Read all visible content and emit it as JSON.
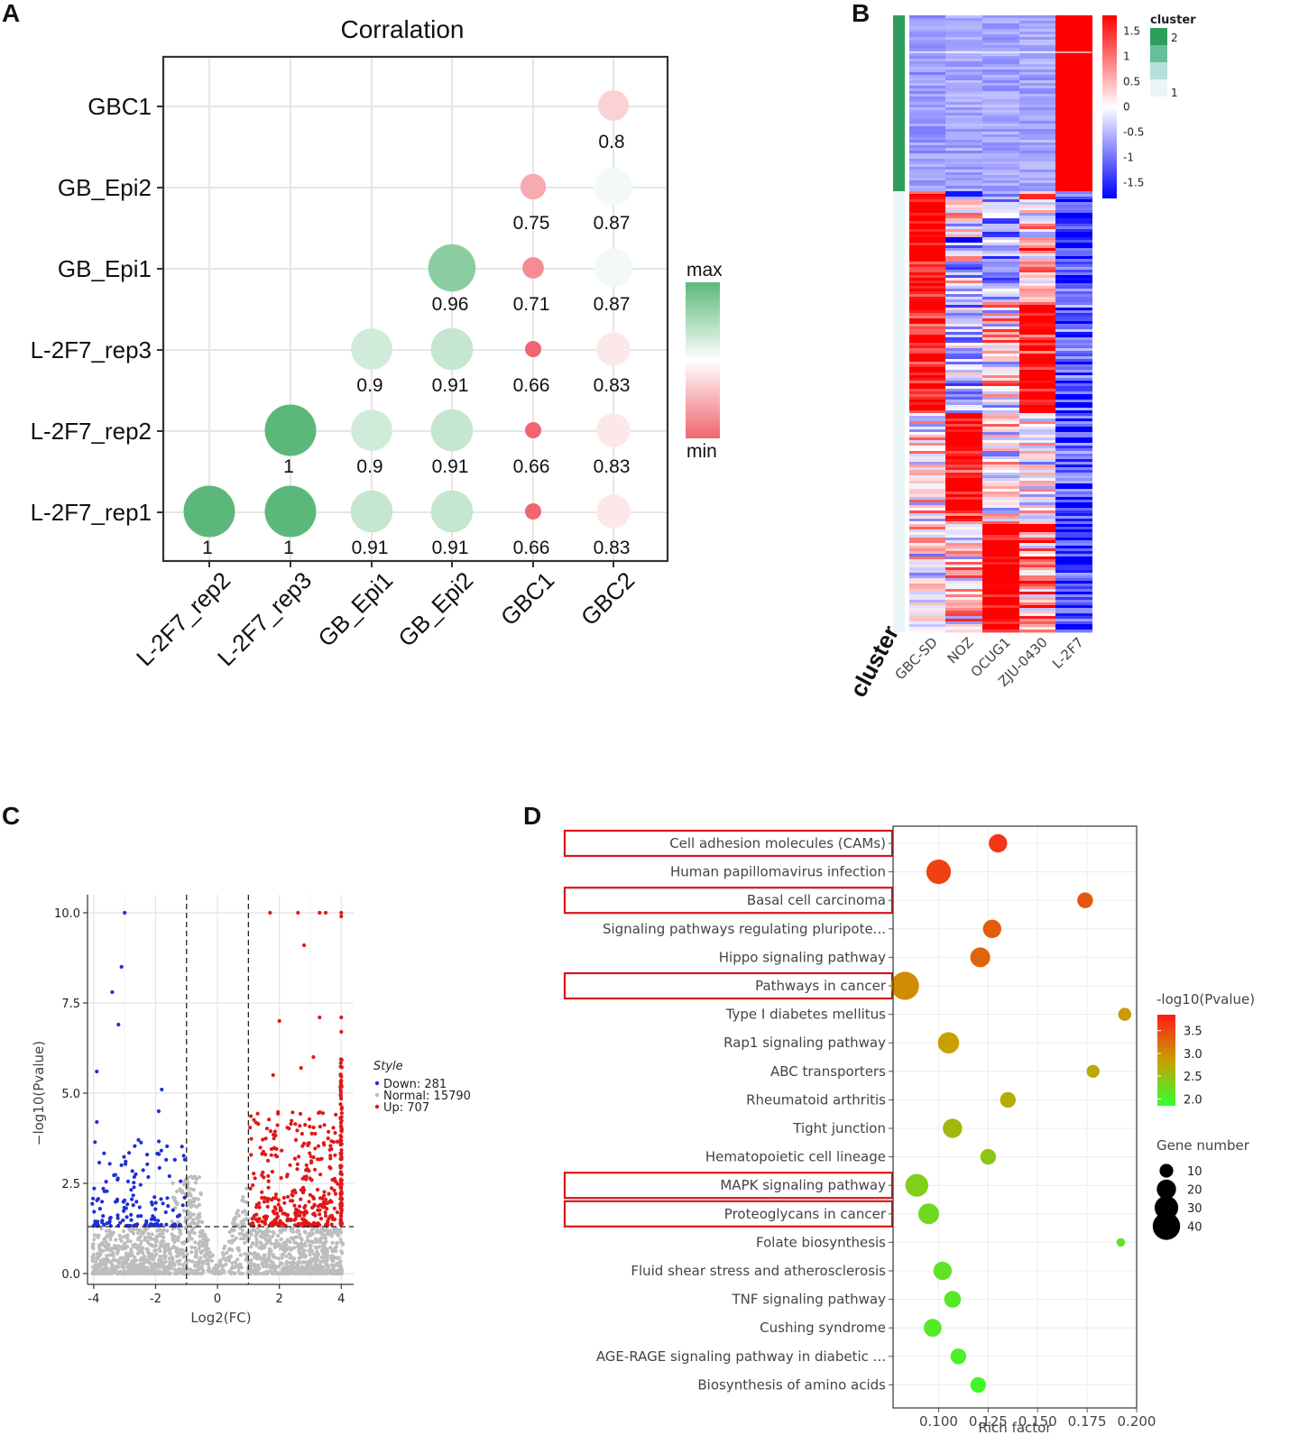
{
  "panels": {
    "a": "A",
    "b": "B",
    "c": "C",
    "d": "D"
  },
  "chart_data": [
    {
      "id": "A",
      "type": "scatter",
      "title": "Corralation",
      "x_categories": [
        "L-2F7_rep2",
        "L-2F7_rep3",
        "GB_Epi1",
        "GB_Epi2",
        "GBC1",
        "GBC2"
      ],
      "y_categories": [
        "L-2F7_rep1",
        "L-2F7_rep2",
        "L-2F7_rep3",
        "GB_Epi1",
        "GB_Epi2",
        "GBC1"
      ],
      "cells": [
        {
          "x": "GBC2",
          "y": "GBC1",
          "value": 0.8,
          "label": "0.8"
        },
        {
          "x": "GBC1",
          "y": "GB_Epi2",
          "value": 0.75,
          "label": "0.75"
        },
        {
          "x": "GBC2",
          "y": "GB_Epi2",
          "value": 0.87,
          "label": "0.87"
        },
        {
          "x": "GB_Epi2",
          "y": "GB_Epi1",
          "value": 0.96,
          "label": "0.96"
        },
        {
          "x": "GBC1",
          "y": "GB_Epi1",
          "value": 0.71,
          "label": "0.71"
        },
        {
          "x": "GBC2",
          "y": "GB_Epi1",
          "value": 0.87,
          "label": "0.87"
        },
        {
          "x": "GB_Epi1",
          "y": "L-2F7_rep3",
          "value": 0.9,
          "label": "0.9"
        },
        {
          "x": "GB_Epi2",
          "y": "L-2F7_rep3",
          "value": 0.91,
          "label": "0.91"
        },
        {
          "x": "GBC1",
          "y": "L-2F7_rep3",
          "value": 0.66,
          "label": "0.66"
        },
        {
          "x": "GBC2",
          "y": "L-2F7_rep3",
          "value": 0.83,
          "label": "0.83"
        },
        {
          "x": "L-2F7_rep3",
          "y": "L-2F7_rep2",
          "value": 1.0,
          "label": "1"
        },
        {
          "x": "GB_Epi1",
          "y": "L-2F7_rep2",
          "value": 0.9,
          "label": "0.9"
        },
        {
          "x": "GB_Epi2",
          "y": "L-2F7_rep2",
          "value": 0.91,
          "label": "0.91"
        },
        {
          "x": "GBC1",
          "y": "L-2F7_rep2",
          "value": 0.66,
          "label": "0.66"
        },
        {
          "x": "GBC2",
          "y": "L-2F7_rep2",
          "value": 0.83,
          "label": "0.83"
        },
        {
          "x": "L-2F7_rep2",
          "y": "L-2F7_rep1",
          "value": 1.0,
          "label": "1"
        },
        {
          "x": "L-2F7_rep3",
          "y": "L-2F7_rep1",
          "value": 1.0,
          "label": "1"
        },
        {
          "x": "GB_Epi1",
          "y": "L-2F7_rep1",
          "value": 0.91,
          "label": "0.91"
        },
        {
          "x": "GB_Epi2",
          "y": "L-2F7_rep1",
          "value": 0.91,
          "label": "0.91"
        },
        {
          "x": "GBC1",
          "y": "L-2F7_rep1",
          "value": 0.66,
          "label": "0.66"
        },
        {
          "x": "GBC2",
          "y": "L-2F7_rep1",
          "value": 0.83,
          "label": "0.83"
        }
      ],
      "legend": {
        "max_label": "max",
        "min_label": "min",
        "max_color": "#5cb87a",
        "mid_color": "#ffffff",
        "min_color": "#f0656f"
      },
      "grid": true
    },
    {
      "id": "B",
      "type": "heatmap",
      "columns": [
        "GBC-SD",
        "NOZ",
        "OCUG1",
        "ZJU-0430",
        "L-2F7"
      ],
      "annotation_title": "cluster",
      "cluster_levels": [
        "2",
        "1"
      ],
      "cluster_colors": [
        "#2e9e5e",
        "#66bf9a",
        "#b6e0dc",
        "#eaf6f6"
      ],
      "colorbar_ticks": [
        1.5,
        1,
        0.5,
        0,
        -0.5,
        -1,
        -1.5
      ],
      "colorbar_tick_labels": [
        "1.5",
        "1",
        "0.5",
        "0",
        "-0.5",
        "-1",
        "-1.5"
      ],
      "color_high": "#ff0000",
      "color_mid": "#ffffff",
      "color_low": "#0000ff",
      "cluster2_column_means": [
        -0.55,
        -0.5,
        -0.5,
        -0.5,
        1.8
      ],
      "cluster1_column_means": [
        0.4,
        0.1,
        0.2,
        0.8,
        -1.0
      ]
    },
    {
      "id": "C",
      "type": "scatter",
      "xlabel": "Log2(FC)",
      "ylabel": "−log10(Pvalue)",
      "xlim": [
        -4.2,
        4.4
      ],
      "ylim": [
        -0.3,
        10.5
      ],
      "xticks": [
        -4,
        -2,
        0,
        2,
        4
      ],
      "xtick_labels": [
        "-4",
        "-2",
        "0",
        "2",
        "4"
      ],
      "yticks": [
        0,
        2.5,
        5,
        7.5,
        10
      ],
      "ytick_labels": [
        "0.0",
        "2.5",
        "5.0",
        "7.5",
        "10.0"
      ],
      "thresholds": {
        "fc": [
          -1,
          1
        ],
        "p": 1.3
      },
      "legend_title": "Style",
      "legend": [
        {
          "label": "Down: 281",
          "color": "#1f2fd9"
        },
        {
          "label": "Normal: 15790",
          "color": "#bdbdbd"
        },
        {
          "label": "Up: 707",
          "color": "#e01818"
        }
      ],
      "series": [
        {
          "name": "Down",
          "count": 281,
          "color": "#1f2fd9"
        },
        {
          "name": "Normal",
          "count": 15790,
          "color": "#bdbdbd"
        },
        {
          "name": "Up",
          "count": 707,
          "color": "#e01818"
        }
      ]
    },
    {
      "id": "D",
      "type": "scatter",
      "xlabel": "Rich factor",
      "xlim": [
        0.077,
        0.2
      ],
      "xticks": [
        0.1,
        0.125,
        0.15,
        0.175,
        0.2
      ],
      "xtick_labels": [
        "0.100",
        "0.125",
        "0.150",
        "0.175",
        "0.200"
      ],
      "color_legend_title": "-log10(Pvalue)",
      "color_ticks": [
        3.5,
        3.0,
        2.5,
        2.0
      ],
      "color_tick_labels": [
        "3.5",
        "3.0",
        "2.5",
        "2.0"
      ],
      "color_range": [
        1.85,
        3.85
      ],
      "size_legend_title": "Gene number",
      "size_values": [
        10,
        20,
        30,
        40
      ],
      "size_labels": [
        "10",
        "20",
        "30",
        "40"
      ],
      "pathways": [
        {
          "term": "Cell adhesion molecules (CAMs)",
          "rich": 0.13,
          "p": 3.65,
          "genes": 18,
          "highlight": true
        },
        {
          "term": "Human papillomavirus infection",
          "rich": 0.1,
          "p": 3.55,
          "genes": 32,
          "highlight": false
        },
        {
          "term": "Basal cell carcinoma",
          "rich": 0.174,
          "p": 3.4,
          "genes": 13,
          "highlight": true
        },
        {
          "term": "Signaling pathways regulating pluripote...",
          "rich": 0.127,
          "p": 3.35,
          "genes": 18,
          "highlight": false
        },
        {
          "term": "Hippo signaling pathway",
          "rich": 0.121,
          "p": 3.3,
          "genes": 21,
          "highlight": false
        },
        {
          "term": "Pathways in cancer",
          "rich": 0.083,
          "p": 3.0,
          "genes": 42,
          "highlight": true
        },
        {
          "term": "Type I diabetes mellitus",
          "rich": 0.194,
          "p": 2.9,
          "genes": 9,
          "highlight": false
        },
        {
          "term": "Rap1 signaling pathway",
          "rich": 0.105,
          "p": 2.85,
          "genes": 24,
          "highlight": false
        },
        {
          "term": "ABC transporters",
          "rich": 0.178,
          "p": 2.75,
          "genes": 9,
          "highlight": false
        },
        {
          "term": "Rheumatoid arthritis",
          "rich": 0.135,
          "p": 2.7,
          "genes": 13,
          "highlight": false
        },
        {
          "term": "Tight junction",
          "rich": 0.107,
          "p": 2.6,
          "genes": 20,
          "highlight": false
        },
        {
          "term": "Hematopoietic cell lineage",
          "rich": 0.125,
          "p": 2.45,
          "genes": 13,
          "highlight": false
        },
        {
          "term": "MAPK signaling pathway",
          "rich": 0.089,
          "p": 2.35,
          "genes": 28,
          "highlight": true
        },
        {
          "term": "Proteoglycans in cancer",
          "rich": 0.095,
          "p": 2.25,
          "genes": 23,
          "highlight": true
        },
        {
          "term": "Folate biosynthesis",
          "rich": 0.192,
          "p": 2.15,
          "genes": 4,
          "highlight": false
        },
        {
          "term": "Fluid shear stress and atherosclerosis",
          "rich": 0.102,
          "p": 2.15,
          "genes": 18,
          "highlight": false
        },
        {
          "term": "TNF signaling pathway",
          "rich": 0.107,
          "p": 2.1,
          "genes": 15,
          "highlight": false
        },
        {
          "term": "Cushing syndrome",
          "rich": 0.097,
          "p": 2.05,
          "genes": 17,
          "highlight": false
        },
        {
          "term": "AGE-RAGE signaling pathway in diabetic ...",
          "rich": 0.11,
          "p": 2.0,
          "genes": 13,
          "highlight": false
        },
        {
          "term": "Biosynthesis of amino acids",
          "rich": 0.12,
          "p": 1.95,
          "genes": 13,
          "highlight": false
        }
      ]
    }
  ]
}
